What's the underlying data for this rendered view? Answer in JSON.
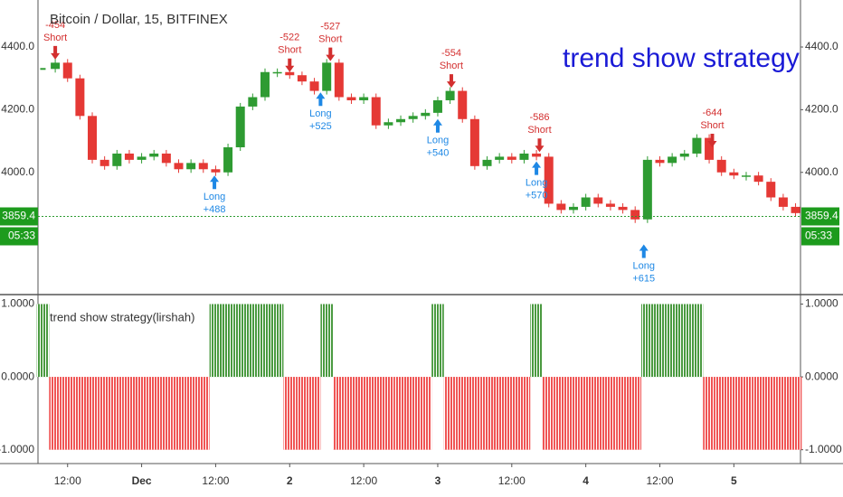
{
  "chart_data": [
    {
      "type": "candlestick",
      "title": "Bitcoin / Dollar, 15, BITFINEX",
      "strategy_label": "trend show strategy",
      "x": [
        8,
        10,
        12,
        14,
        16,
        18,
        20,
        22,
        24,
        26,
        28,
        30,
        32,
        34,
        36,
        38,
        40,
        42,
        44,
        46,
        48,
        50,
        52,
        54,
        56,
        58,
        60,
        62,
        64,
        66,
        68,
        70,
        72,
        74,
        76,
        78,
        80,
        82,
        84,
        86,
        88,
        90,
        92,
        94,
        96,
        98,
        100,
        102,
        104,
        106,
        108,
        110,
        112,
        114,
        116,
        118,
        120,
        122,
        124,
        126,
        128,
        130
      ],
      "series": [
        {
          "name": "BTCUSD",
          "up_color": "#2e9b32",
          "down_color": "#e53935",
          "values": [
            4330,
            4350,
            4300,
            4180,
            4040,
            4020,
            4060,
            4040,
            4050,
            4060,
            4030,
            4010,
            4030,
            4010,
            4000,
            4080,
            4210,
            4240,
            4320,
            4320,
            4310,
            4290,
            4260,
            4350,
            4240,
            4230,
            4240,
            4150,
            4160,
            4170,
            4180,
            4190,
            4230,
            4260,
            4170,
            4020,
            4040,
            4050,
            4040,
            4060,
            4050,
            3900,
            3880,
            3890,
            3920,
            3900,
            3890,
            3880,
            3850,
            4040,
            4030,
            4050,
            4060,
            4110,
            4040,
            4000,
            3990,
            3990,
            3970,
            3920,
            3890,
            3870
          ]
        }
      ],
      "xlim": [
        7.2,
        130.8
      ],
      "ylim": [
        3610,
        4550
      ],
      "yticks": [
        {
          "value": 4000,
          "label": "4000.0"
        },
        {
          "value": 4200,
          "label": "4200.0"
        },
        {
          "value": 4400,
          "label": "4400.0"
        }
      ],
      "last_price": 3859.4,
      "countdown": "05:33",
      "signals": [
        {
          "side": "Short",
          "pnl": "-454",
          "x": 10,
          "price": 4360
        },
        {
          "side": "Short",
          "pnl": "-522",
          "x": 48,
          "price": 4320
        },
        {
          "side": "Short",
          "pnl": "-527",
          "x": 54.6,
          "price": 4355
        },
        {
          "side": "Short",
          "pnl": "-554",
          "x": 74.2,
          "price": 4270
        },
        {
          "side": "Short",
          "pnl": "-586",
          "x": 88.5,
          "price": 4065
        },
        {
          "side": "Short",
          "pnl": "-644",
          "x": 116.5,
          "price": 4080
        },
        {
          "side": "Long",
          "pnl": "+488",
          "x": 35.8,
          "price": 3990
        },
        {
          "side": "Long",
          "pnl": "+525",
          "x": 53,
          "price": 4255
        },
        {
          "side": "Long",
          "pnl": "+540",
          "x": 72,
          "price": 4170
        },
        {
          "side": "Long",
          "pnl": "+570",
          "x": 88,
          "price": 4035
        },
        {
          "side": "Long",
          "pnl": "+615",
          "x": 105.4,
          "price": 3770
        }
      ]
    },
    {
      "type": "bar",
      "title": "trend show strategy(lirshah)",
      "x": [
        8,
        10,
        12,
        14,
        16,
        18,
        20,
        22,
        24,
        26,
        28,
        30,
        32,
        34,
        36,
        38,
        40,
        42,
        44,
        46,
        48,
        50,
        52,
        54,
        56,
        58,
        60,
        62,
        64,
        66,
        68,
        70,
        72,
        74,
        76,
        78,
        80,
        82,
        84,
        86,
        88,
        90,
        92,
        94,
        96,
        98,
        100,
        102,
        104,
        106,
        108,
        110,
        112,
        114,
        116,
        118,
        120,
        122,
        124,
        126,
        128,
        130
      ],
      "series": [
        {
          "name": "signal",
          "up_color": "#4a9a40",
          "down_color": "#f05454",
          "values": [
            1,
            -1,
            -1,
            -1,
            -1,
            -1,
            -1,
            -1,
            -1,
            -1,
            -1,
            -1,
            -1,
            -1,
            1,
            1,
            1,
            1,
            1,
            1,
            -1,
            -1,
            -1,
            1,
            -1,
            -1,
            -1,
            -1,
            -1,
            -1,
            -1,
            -1,
            1,
            -1,
            -1,
            -1,
            -1,
            -1,
            -1,
            -1,
            1,
            -1,
            -1,
            -1,
            -1,
            -1,
            -1,
            -1,
            -1,
            1,
            1,
            1,
            1,
            1,
            -1,
            -1,
            -1,
            -1,
            -1,
            -1,
            -1,
            -1
          ]
        }
      ],
      "xlim": [
        7.2,
        130.8
      ],
      "ylim": [
        -1.19,
        1.13
      ],
      "yticks": [
        {
          "value": -1,
          "label": "-1.0000"
        },
        {
          "value": 0,
          "label": "0.0000"
        },
        {
          "value": 1,
          "label": "1.0000"
        }
      ],
      "xticks": [
        {
          "value": 12,
          "label": "12:00"
        },
        {
          "value": 24,
          "label": "Dec"
        },
        {
          "value": 36,
          "label": "12:00"
        },
        {
          "value": 48,
          "label": "2"
        },
        {
          "value": 60,
          "label": "12:00"
        },
        {
          "value": 72,
          "label": "3"
        },
        {
          "value": 84,
          "label": "12:00"
        },
        {
          "value": 96,
          "label": "4"
        },
        {
          "value": 108,
          "label": "12:00"
        },
        {
          "value": 120,
          "label": "5"
        }
      ]
    }
  ]
}
